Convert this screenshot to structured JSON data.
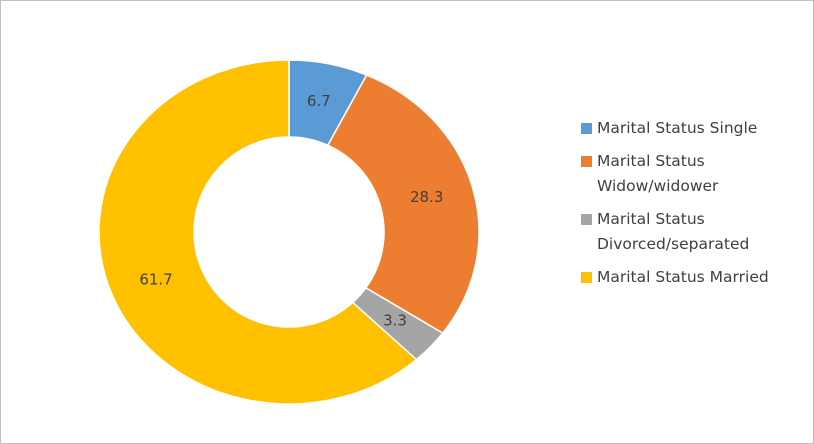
{
  "chart_data": {
    "type": "donut",
    "categories": [
      "Marital Status Single",
      "Marital Status Widow/widower",
      "Marital Status Divorced/separated",
      "Marital Status Married"
    ],
    "values": [
      6.7,
      28.3,
      3.3,
      61.7
    ],
    "colors": [
      "#5b9bd5",
      "#ed7d31",
      "#a5a5a5",
      "#ffc000"
    ],
    "legend": "right"
  }
}
